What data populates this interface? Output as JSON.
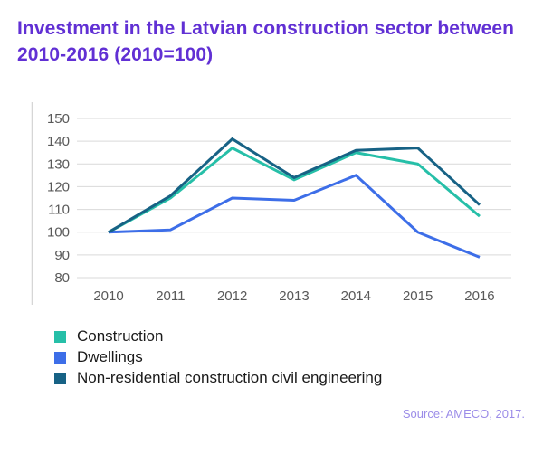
{
  "title": "Investment in the Latvian construction sector between\n2010-2016 (2010=100)",
  "source": "Source: AMECO, 2017.",
  "colors": {
    "title_text": "#6130D4",
    "source_text": "#9B8CE8",
    "axis_text": "#595959",
    "gridline": "#D9D9D9",
    "background": "#FFFFFF"
  },
  "chart_data": {
    "type": "line",
    "title": "Investment in the Latvian construction sector between 2010-2016 (2010=100)",
    "xlabel": "",
    "ylabel": "",
    "categories": [
      "2010",
      "2011",
      "2012",
      "2013",
      "2014",
      "2015",
      "2016"
    ],
    "series": [
      {
        "name": "Construction",
        "color": "#26BFA8",
        "values": [
          100,
          115,
          137,
          123,
          135,
          130,
          107
        ]
      },
      {
        "name": "Dwellings",
        "color": "#3D6EE8",
        "values": [
          100,
          101,
          115,
          114,
          125,
          100,
          89
        ]
      },
      {
        "name": "Non-residential construction civil engineering",
        "color": "#176285",
        "values": [
          100,
          116,
          141,
          124,
          136,
          137,
          112
        ]
      }
    ],
    "yticks": [
      150,
      140,
      130,
      120,
      110,
      100,
      90,
      80
    ],
    "ylim": [
      80,
      150
    ],
    "grid": "horizontal",
    "legend_position": "bottom-left"
  }
}
